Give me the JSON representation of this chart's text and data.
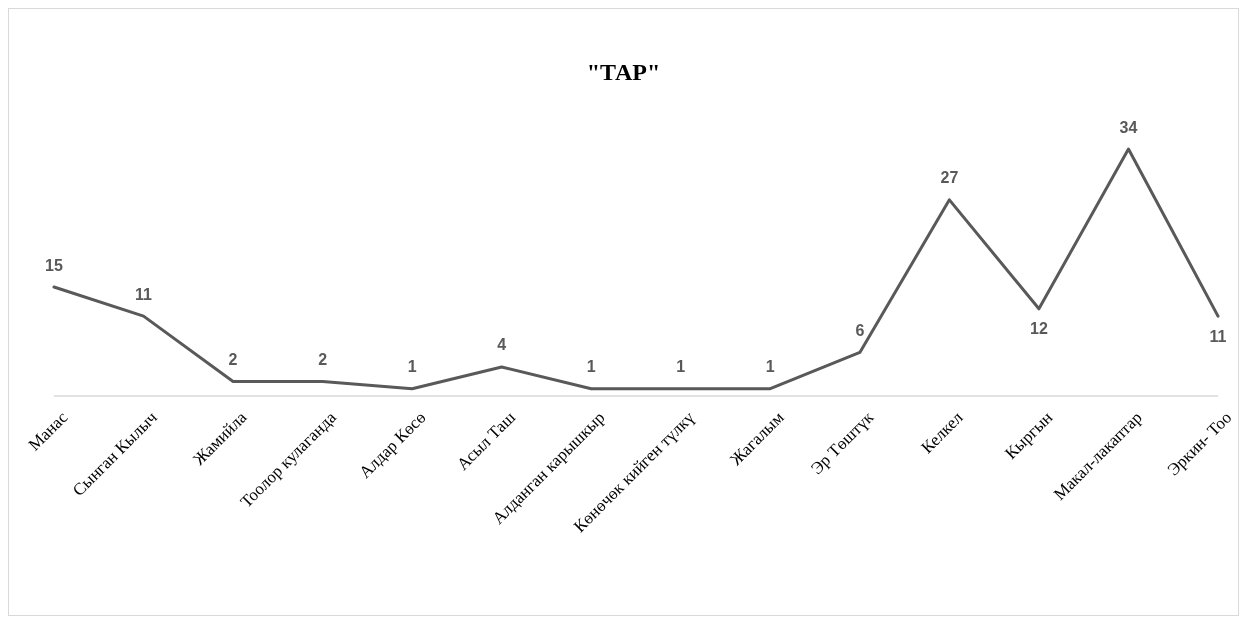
{
  "chart_data": {
    "type": "line",
    "title": "\"ТАР\"",
    "categories": [
      "Манас",
      "Сынган Кылыч",
      "Жамийла",
      "Тоолор кулаганда",
      "Алдар Көсө",
      "Асыл Таш",
      "Алданган карышкыр",
      "Көнөчөк кийген түлкү",
      "Жагалым",
      "Эр Төштүк",
      "Келкел",
      "Кыргын",
      "Макал-лакаптар",
      "Эркин- Тоо"
    ],
    "values": [
      15,
      11,
      2,
      2,
      1,
      4,
      1,
      1,
      1,
      6,
      27,
      12,
      34,
      11
    ],
    "color": "#595959",
    "data_labels": true,
    "marker": "none",
    "line_style": "solid",
    "legend": false
  }
}
